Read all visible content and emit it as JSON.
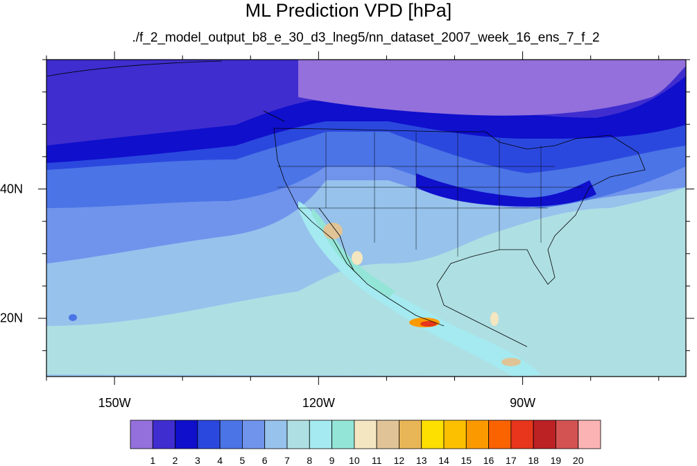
{
  "chart_data": {
    "type": "heatmap",
    "title": "ML Prediction VPD [hPa]",
    "subtitle": "./f_2_model_output_b8_e_30_d3_lneg5/nn_dataset_2007_week_16_ens_7_f_2",
    "x_ticks": [
      "150W",
      "120W",
      "90W"
    ],
    "y_ticks": [
      "40N",
      "20N"
    ],
    "xlim": [
      -160,
      -66
    ],
    "ylim": [
      11,
      60
    ],
    "x_tick_values": [
      -150,
      -120,
      -90
    ],
    "y_tick_values": [
      40,
      20
    ],
    "colorbar": {
      "labels": [
        "1",
        "2",
        "3",
        "4",
        "5",
        "6",
        "7",
        "8",
        "9",
        "10",
        "11",
        "12",
        "13",
        "14",
        "15",
        "16",
        "17",
        "18",
        "19",
        "20"
      ],
      "colors": [
        "#9370db",
        "#3f2dcf",
        "#0f0fcc",
        "#2b48de",
        "#4b74e6",
        "#7094ec",
        "#96c2ec",
        "#aedfe3",
        "#a4eaf0",
        "#93e5d7",
        "#f4e6c0",
        "#e0c497",
        "#e8b656",
        "#fddf00",
        "#fcc000",
        "#fb9a00",
        "#fb6200",
        "#e7361c",
        "#bc2124",
        "#d35352",
        "#fcb3b3"
      ]
    }
  }
}
